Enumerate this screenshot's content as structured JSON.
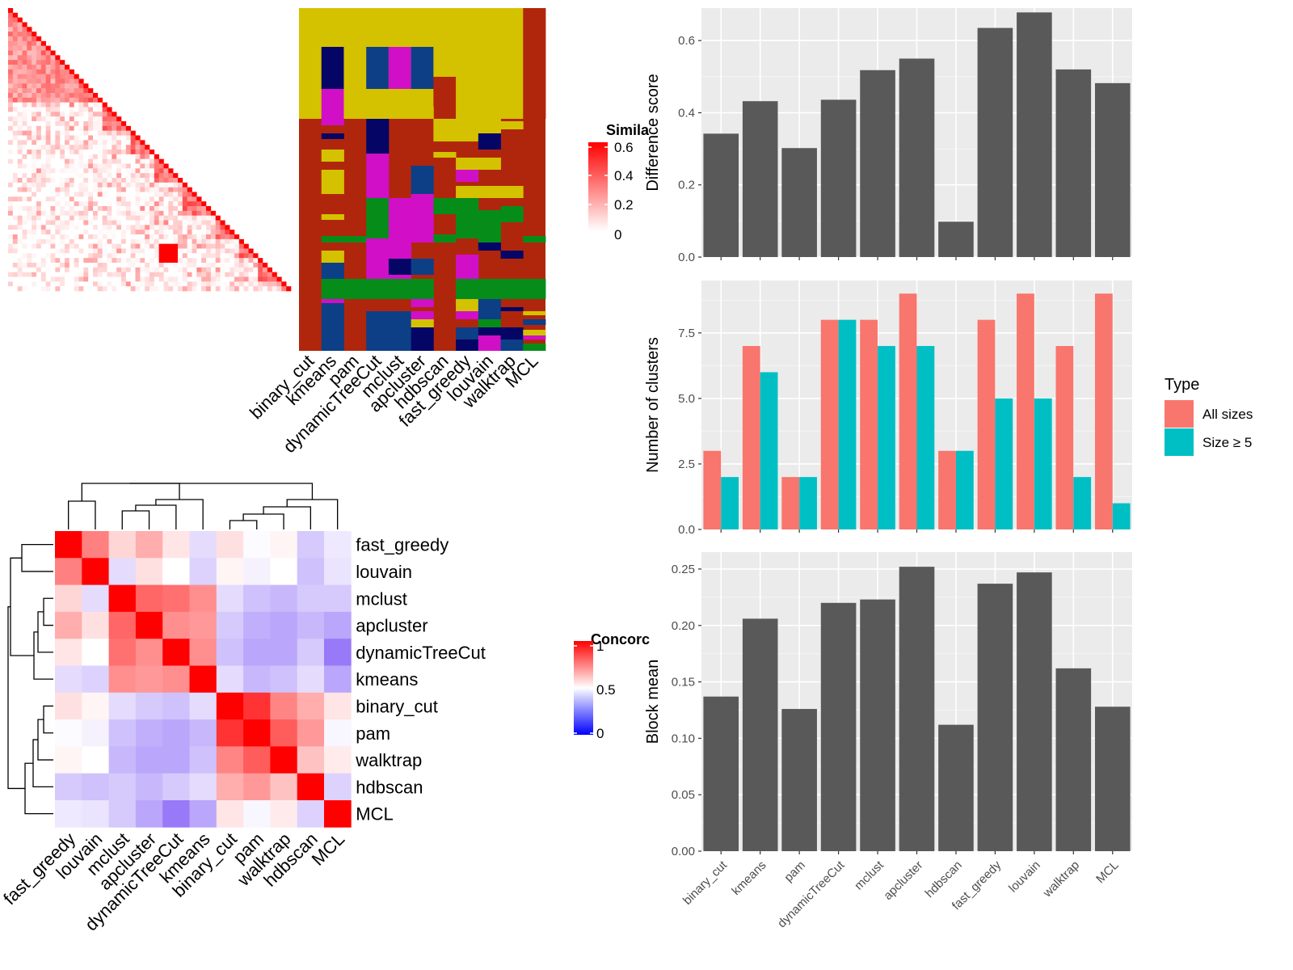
{
  "methods": [
    "binary_cut",
    "kmeans",
    "pam",
    "dynamicTreeCut",
    "mclust",
    "apcluster",
    "hdbscan",
    "fast_greedy",
    "louvain",
    "walktrap",
    "MCL"
  ],
  "colors": {
    "bar_dark": "#595959",
    "panel_bg": "#ebebeb",
    "all_sizes": "#F8766D",
    "size_ge5": "#00BFC4",
    "sim_high": "#ff0000",
    "conc_high": "#ff0000",
    "conc_mid": "#ffffff",
    "conc_low": "#0000ff",
    "clust_yellow": "#d4c200",
    "clust_red": "#b0260c",
    "clust_green": "#068c19",
    "clust_navy": "#050566",
    "clust_blue": "#0d3f86",
    "clust_magenta": "#d10fc7"
  },
  "similarity_legend": {
    "title": "Simila",
    "ticks": [
      "0.6",
      "0.4",
      "0.2",
      "0"
    ]
  },
  "concordance_legend": {
    "title": "Concorc",
    "ticks": [
      "1",
      "0.5",
      "0"
    ]
  },
  "type_legend": {
    "title": "Type",
    "items": [
      "All sizes",
      "Size ≥ 5"
    ]
  },
  "chart_data": [
    {
      "type": "heatmap",
      "name": "similarity heatmap",
      "legend_title": "Simila",
      "color_range": [
        0,
        0.6
      ]
    },
    {
      "type": "heatmap",
      "name": "cluster assignment matrix",
      "columns": [
        "binary_cut",
        "kmeans",
        "pam",
        "dynamicTreeCut",
        "mclust",
        "apcluster",
        "hdbscan",
        "fast_greedy",
        "louvain",
        "walktrap",
        "MCL"
      ]
    },
    {
      "type": "heatmap",
      "name": "concordance matrix",
      "legend_title": "Concorc",
      "order": [
        "fast_greedy",
        "louvain",
        "mclust",
        "apcluster",
        "dynamicTreeCut",
        "kmeans",
        "binary_cut",
        "pam",
        "walktrap",
        "hdbscan",
        "MCL"
      ],
      "values": [
        [
          1.0,
          0.75,
          0.58,
          0.66,
          0.55,
          0.42,
          0.56,
          0.49,
          0.52,
          0.38,
          0.45
        ],
        [
          0.75,
          1.0,
          0.42,
          0.56,
          0.5,
          0.4,
          0.52,
          0.47,
          0.5,
          0.36,
          0.44
        ],
        [
          0.58,
          0.42,
          1.0,
          0.8,
          0.78,
          0.72,
          0.42,
          0.36,
          0.34,
          0.38,
          0.38
        ],
        [
          0.66,
          0.56,
          0.8,
          1.0,
          0.72,
          0.7,
          0.38,
          0.32,
          0.3,
          0.34,
          0.3
        ],
        [
          0.55,
          0.5,
          0.78,
          0.72,
          1.0,
          0.72,
          0.36,
          0.3,
          0.3,
          0.38,
          0.2
        ],
        [
          0.42,
          0.4,
          0.72,
          0.7,
          0.72,
          1.0,
          0.42,
          0.34,
          0.36,
          0.42,
          0.3
        ],
        [
          0.56,
          0.52,
          0.42,
          0.38,
          0.36,
          0.42,
          1.0,
          0.9,
          0.74,
          0.66,
          0.55
        ],
        [
          0.49,
          0.47,
          0.36,
          0.32,
          0.3,
          0.34,
          0.9,
          1.0,
          0.82,
          0.7,
          0.48
        ],
        [
          0.52,
          0.5,
          0.34,
          0.3,
          0.3,
          0.36,
          0.74,
          0.82,
          1.0,
          0.62,
          0.54
        ],
        [
          0.38,
          0.36,
          0.38,
          0.34,
          0.38,
          0.42,
          0.66,
          0.7,
          0.62,
          1.0,
          0.4
        ],
        [
          0.45,
          0.44,
          0.38,
          0.3,
          0.2,
          0.3,
          0.55,
          0.48,
          0.54,
          0.4,
          1.0
        ]
      ],
      "color_range": [
        0,
        1
      ]
    },
    {
      "type": "bar",
      "categories": [
        "binary_cut",
        "kmeans",
        "pam",
        "dynamicTreeCut",
        "mclust",
        "apcluster",
        "hdbscan",
        "fast_greedy",
        "louvain",
        "walktrap",
        "MCL"
      ],
      "values": [
        0.342,
        0.432,
        0.302,
        0.436,
        0.518,
        0.55,
        0.098,
        0.635,
        0.678,
        0.52,
        0.482
      ],
      "ylabel": "Difference score",
      "ylim": [
        0,
        0.69
      ],
      "yticks": [
        "0.0",
        "0.2",
        "0.4",
        "0.6"
      ],
      "grid": true
    },
    {
      "type": "bar",
      "categories": [
        "binary_cut",
        "kmeans",
        "pam",
        "dynamicTreeCut",
        "mclust",
        "apcluster",
        "hdbscan",
        "fast_greedy",
        "louvain",
        "walktrap",
        "MCL"
      ],
      "series": [
        {
          "name": "All sizes",
          "values": [
            3,
            7,
            2,
            8,
            8,
            9,
            3,
            8,
            9,
            7,
            9
          ]
        },
        {
          "name": "Size ≥ 5",
          "values": [
            2,
            6,
            2,
            8,
            7,
            7,
            3,
            5,
            5,
            2,
            1
          ]
        }
      ],
      "ylabel": "Number of clusters",
      "ylim": [
        0,
        9.5
      ],
      "yticks": [
        "0.0",
        "2.5",
        "5.0",
        "7.5"
      ],
      "legend_title": "Type",
      "legend": "right",
      "grid": true
    },
    {
      "type": "bar",
      "categories": [
        "binary_cut",
        "kmeans",
        "pam",
        "dynamicTreeCut",
        "mclust",
        "apcluster",
        "hdbscan",
        "fast_greedy",
        "louvain",
        "walktrap",
        "MCL"
      ],
      "values": [
        0.137,
        0.206,
        0.126,
        0.22,
        0.223,
        0.252,
        0.112,
        0.237,
        0.247,
        0.162,
        0.128
      ],
      "ylabel": "Block mean",
      "ylim": [
        0,
        0.265
      ],
      "yticks": [
        "0.00",
        "0.05",
        "0.10",
        "0.15",
        "0.20",
        "0.25"
      ],
      "grid": true
    }
  ]
}
